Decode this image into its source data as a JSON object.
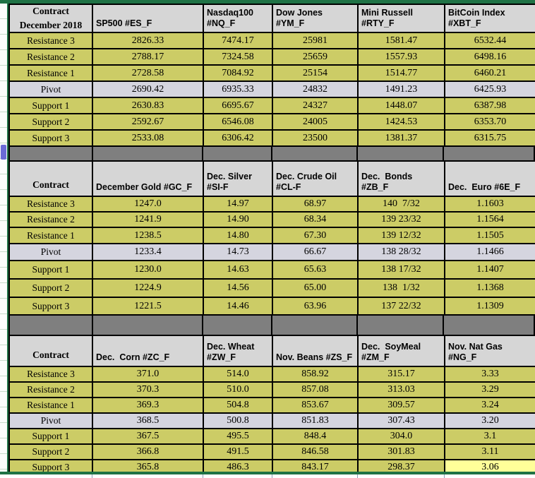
{
  "sheet": {
    "description": "Futures pivot-point spreadsheet, December 2018 contracts",
    "row_labels": [
      "Resistance 3",
      "Resistance 2",
      "Resistance 1",
      "Pivot",
      "Support 1",
      "Support 2",
      "Support 3"
    ]
  },
  "colors": {
    "accent_green": "#1F7245",
    "cell_khaki": "#CCCC66",
    "header_gray": "#D6D6D6",
    "pivot_gray": "#D5D5DF",
    "separator_gray": "#7F7F7F",
    "highlight_yellow": "#FFFF99",
    "border_black": "#000000",
    "gutter_marker_blue": "#6B6BD6"
  },
  "tables": [
    {
      "header": [
        "Contract\nDecember 2018",
        "SP500 #ES_F",
        "Nasdaq100\n#NQ_F",
        "Dow Jones\n#YM_F",
        "Mini Russell\n#RTY_F",
        "BitCoin Index\n#XBT_F"
      ],
      "rows": [
        {
          "label": "Resistance 3",
          "cells": [
            "2826.33",
            "7474.17",
            "25981",
            "1581.47",
            "6532.44"
          ]
        },
        {
          "label": "Resistance 2",
          "cells": [
            "2788.17",
            "7324.58",
            "25659",
            "1557.93",
            "6498.16"
          ]
        },
        {
          "label": "Resistance 1",
          "cells": [
            "2728.58",
            "7084.92",
            "25154",
            "1514.77",
            "6460.21"
          ]
        },
        {
          "label": "Pivot",
          "cells": [
            "2690.42",
            "6935.33",
            "24832",
            "1491.23",
            "6425.93"
          ]
        },
        {
          "label": "Support 1",
          "cells": [
            "2630.83",
            "6695.67",
            "24327",
            "1448.07",
            "6387.98"
          ]
        },
        {
          "label": "Support 2",
          "cells": [
            "2592.67",
            "6546.08",
            "24005",
            "1424.53",
            "6353.70"
          ]
        },
        {
          "label": "Support 3",
          "cells": [
            "2533.08",
            "6306.42",
            "23500",
            "1381.37",
            "6315.75"
          ]
        }
      ]
    },
    {
      "header": [
        "Contract",
        "December Gold #GC_F",
        "Dec. Silver\n#SI-F",
        "Dec. Crude Oil\n#CL-F",
        "Dec.  Bonds\n#ZB_F",
        "Dec.  Euro #6E_F"
      ],
      "rows": [
        {
          "label": "Resistance 3",
          "cells": [
            "1247.0",
            "14.97",
            "68.97",
            "140  7/32",
            "1.1603"
          ]
        },
        {
          "label": "Resistance 2",
          "cells": [
            "1241.9",
            "14.90",
            "68.34",
            "139 23/32",
            "1.1564"
          ]
        },
        {
          "label": "Resistance 1",
          "cells": [
            "1238.5",
            "14.80",
            "67.30",
            "139 12/32",
            "1.1505"
          ]
        },
        {
          "label": "Pivot",
          "cells": [
            "1233.4",
            "14.73",
            "66.67",
            "138 28/32",
            "1.1466"
          ]
        },
        {
          "label": "Support 1",
          "cells": [
            "1230.0",
            "14.63",
            "65.63",
            "138 17/32",
            "1.1407"
          ]
        },
        {
          "label": "Support 2",
          "cells": [
            "1224.9",
            "14.56",
            "65.00",
            "138  1/32",
            "1.1368"
          ]
        },
        {
          "label": "Support 3",
          "cells": [
            "1221.5",
            "14.46",
            "63.96",
            "137 22/32",
            "1.1309"
          ]
        }
      ]
    },
    {
      "header": [
        "Contract",
        "Dec.  Corn #ZC_F",
        "Dec. Wheat\n#ZW_F",
        "Nov. Beans #ZS_F",
        "Dec.  SoyMeal\n#ZM_F",
        "Nov. Nat Gas\n#NG_F"
      ],
      "rows": [
        {
          "label": "Resistance 3",
          "cells": [
            "371.0",
            "514.0",
            "858.92",
            "315.17",
            "3.33"
          ]
        },
        {
          "label": "Resistance 2",
          "cells": [
            "370.3",
            "510.0",
            "857.08",
            "313.03",
            "3.29"
          ]
        },
        {
          "label": "Resistance 1",
          "cells": [
            "369.3",
            "504.8",
            "853.67",
            "309.57",
            "3.24"
          ]
        },
        {
          "label": "Pivot",
          "cells": [
            "368.5",
            "500.8",
            "851.83",
            "307.43",
            "3.20"
          ]
        },
        {
          "label": "Support 1",
          "cells": [
            "367.5",
            "495.5",
            "848.4",
            "304.0",
            "3.1"
          ]
        },
        {
          "label": "Support 2",
          "cells": [
            "366.8",
            "491.5",
            "846.58",
            "301.83",
            "3.11"
          ]
        },
        {
          "label": "Support 3",
          "cells": [
            "365.8",
            "486.3",
            "843.17",
            "298.37",
            "3.06"
          ]
        }
      ]
    }
  ],
  "highlight": {
    "table": 2,
    "row": 6,
    "cell": 4
  }
}
